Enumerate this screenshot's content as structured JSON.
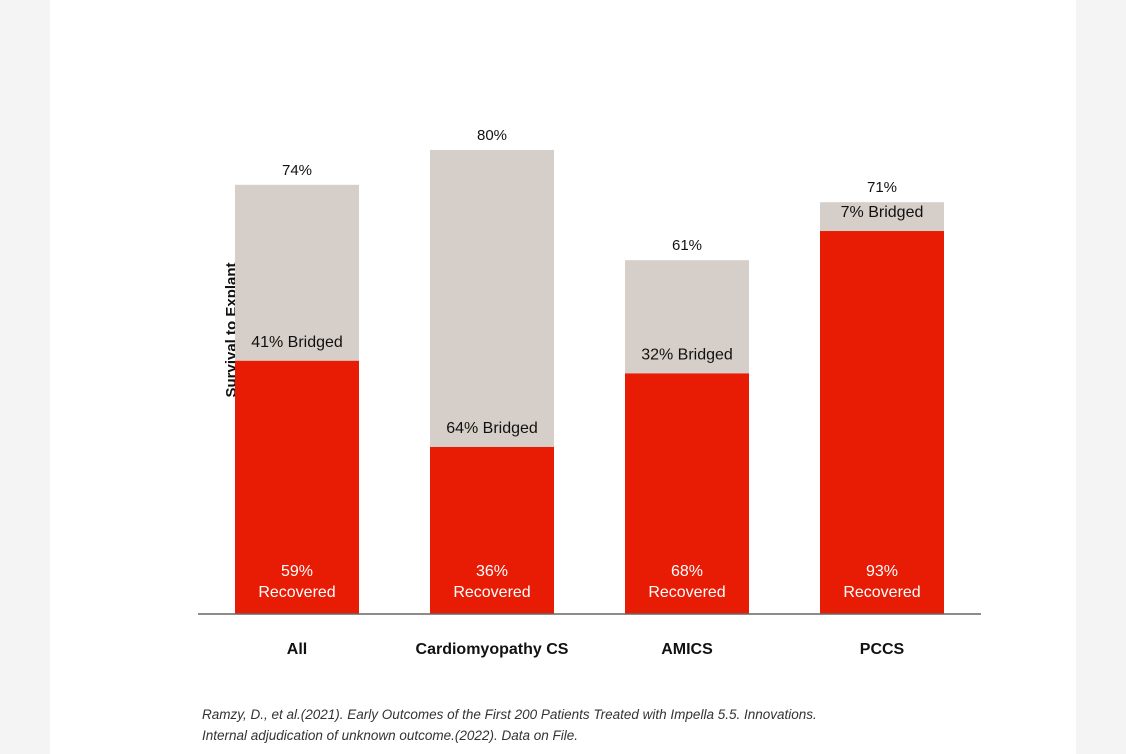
{
  "chart_data": {
    "type": "bar",
    "stacked": true,
    "ylabel": "Survival to Explant",
    "xlabel": "",
    "categories": [
      "All",
      "Cardiomyopathy CS",
      "AMICS",
      "PCCS"
    ],
    "totals": [
      74,
      80,
      61,
      71
    ],
    "total_labels": [
      "74%",
      "80%",
      "61%",
      "71%"
    ],
    "series": [
      {
        "name": "Recovered",
        "values": [
          43.66,
          28.8,
          41.48,
          66.03
        ],
        "color": "#e81c05"
      },
      {
        "name": "Bridged",
        "values": [
          30.34,
          51.2,
          19.52,
          4.97
        ],
        "color": "#d6cfc9"
      }
    ],
    "recovered_pct_labels": [
      "59%",
      "36%",
      "68%",
      "93%"
    ],
    "recovered_word": "Recovered",
    "bridged_labels": [
      "41% Bridged",
      "64% Bridged",
      "32% Bridged",
      "7% Bridged"
    ],
    "ylim": [
      0,
      100
    ],
    "grid": false,
    "legend": "none"
  },
  "footnote": {
    "line1": "Ramzy, D., et al.(2021). Early Outcomes of the First 200 Patients Treated with Impella 5.5. Innovations.",
    "line2": "Internal adjudication of unknown outcome.(2022). Data on File."
  }
}
